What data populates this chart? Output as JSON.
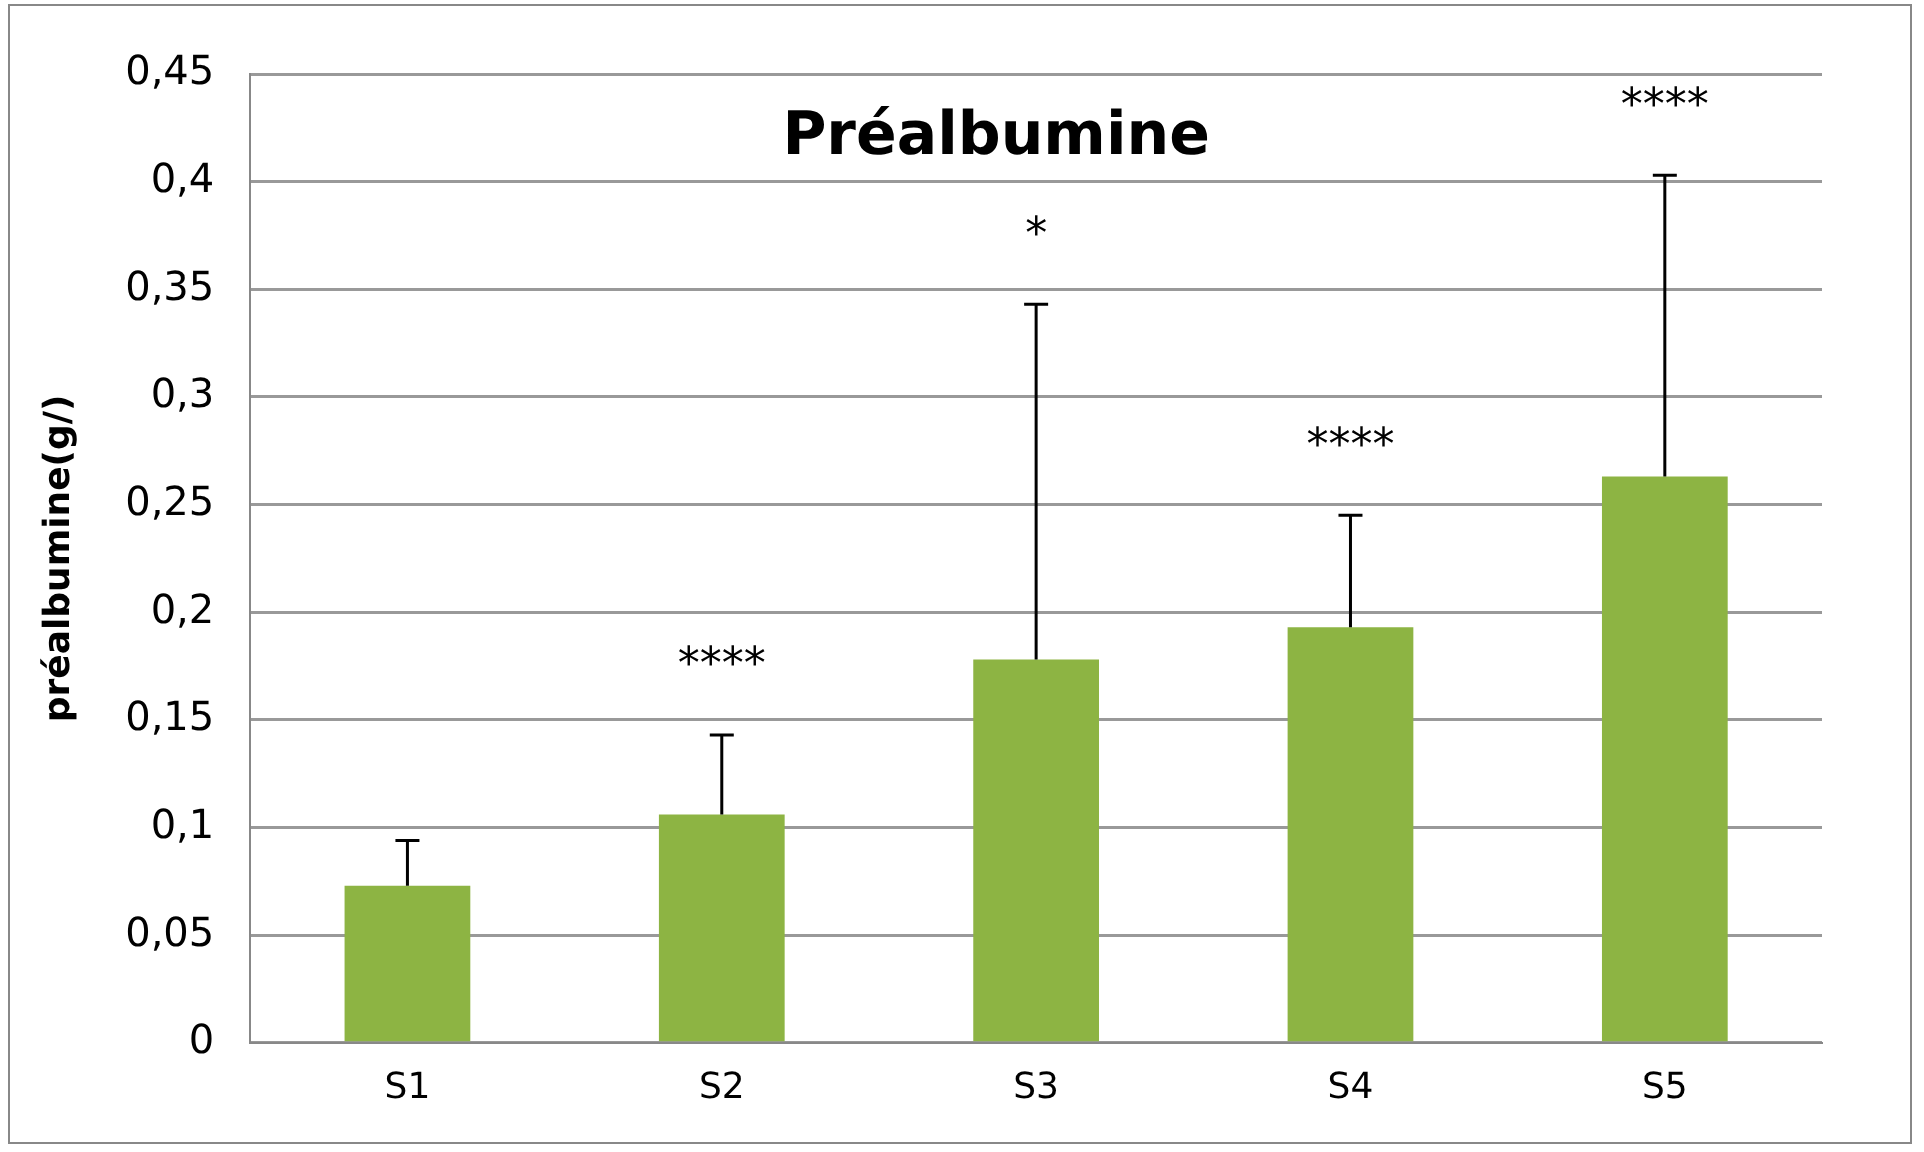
{
  "chart_data": {
    "type": "bar",
    "title": "Préalbumine",
    "ylabel": "préalbumine(g/)",
    "categories": [
      "S1",
      "S2",
      "S3",
      "S4",
      "S5"
    ],
    "values": [
      0.073,
      0.106,
      0.178,
      0.193,
      0.263
    ],
    "errors": [
      [
        0.073,
        0.094
      ],
      [
        0.106,
        0.143
      ],
      [
        0.178,
        0.343
      ],
      [
        0.193,
        0.245
      ],
      [
        0.263,
        0.403
      ]
    ],
    "color": "#8db443",
    "ylim": [
      0,
      0.45
    ],
    "yticks": [
      {
        "value": 0,
        "label": "0"
      },
      {
        "value": 0.05,
        "label": "0,05"
      },
      {
        "value": 0.1,
        "label": "0,1"
      },
      {
        "value": 0.15,
        "label": "0,15"
      },
      {
        "value": 0.2,
        "label": "0,2"
      },
      {
        "value": 0.25,
        "label": "0,25"
      },
      {
        "value": 0.3,
        "label": "0,3"
      },
      {
        "value": 0.35,
        "label": "0,35"
      },
      {
        "value": 0.4,
        "label": "0,4"
      },
      {
        "value": 0.45,
        "label": "0,45"
      }
    ],
    "grid": "y",
    "legend": false,
    "annotations": [
      "****",
      "*",
      "****",
      "****"
    ]
  }
}
